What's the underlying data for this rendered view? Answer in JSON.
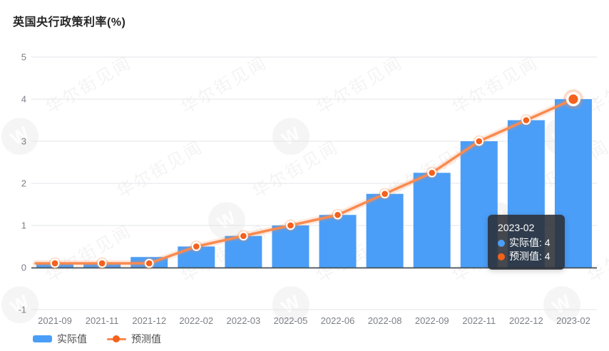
{
  "title": "英国央行政策利率(%)",
  "colors": {
    "bar": "#4a9ef7",
    "line": "#f98a4f",
    "marker": "#f4611c",
    "axis": "#465059",
    "grid": "#e3e5e9",
    "tick_text": "#7b7f86",
    "tooltip_bg": "rgba(43,47,54,0.88)"
  },
  "legend": {
    "items": [
      {
        "label": "实际值",
        "type": "bar"
      },
      {
        "label": "预测值",
        "type": "line"
      }
    ]
  },
  "tooltip": {
    "title": "2023-02",
    "items": [
      {
        "label": "实际值",
        "value": "4",
        "text": "实际值: 4",
        "series": "bar"
      },
      {
        "label": "预测值",
        "value": "4",
        "text": "预测值: 4",
        "series": "line"
      }
    ]
  },
  "watermark": {
    "text": "华尔街见闻",
    "logo_letter": "W"
  },
  "chart_data": {
    "type": "bar",
    "subtype": "bar+line combo",
    "title": "英国央行政策利率(%)",
    "categories": [
      "2021-09",
      "2021-11",
      "2021-12",
      "2022-02",
      "2022-03",
      "2022-05",
      "2022-06",
      "2022-08",
      "2022-09",
      "2022-11",
      "2022-12",
      "2023-02"
    ],
    "series": [
      {
        "name": "实际值",
        "type": "bar",
        "values": [
          0.1,
          0.1,
          0.25,
          0.5,
          0.75,
          1,
          1.25,
          1.75,
          2.25,
          3,
          3.5,
          4
        ]
      },
      {
        "name": "预测值",
        "type": "line",
        "values": [
          0.1,
          0.1,
          0.1,
          0.5,
          0.75,
          1,
          1.25,
          1.75,
          2.25,
          3,
          3.5,
          4
        ]
      }
    ],
    "xlabel": "",
    "ylabel": "",
    "ylim": [
      -1,
      5
    ],
    "yticks": [
      5,
      4,
      3,
      2,
      1,
      0,
      -1
    ],
    "grid": true,
    "legend_position": "bottom-left",
    "highlighted_index": 11,
    "highlighted_category": "2023-02"
  }
}
